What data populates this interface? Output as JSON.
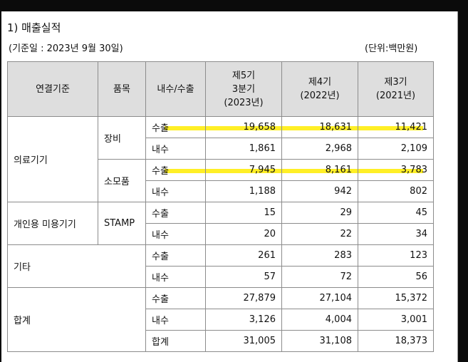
{
  "title": "1) 매출실적",
  "basis": "(기준일 : 2023년 9월 30일)",
  "unit": "(단위:백만원)",
  "headers": {
    "category": "연결기준",
    "item": "품목",
    "flow": "내수/수출",
    "p5": [
      "제5기",
      "3분기",
      "(2023년)"
    ],
    "p4": [
      "제4기",
      "(2022년)"
    ],
    "p3": [
      "제3기",
      "(2021년)"
    ]
  },
  "rows": {
    "medical": "의료기기",
    "equipment": "장비",
    "consumables": "소모품",
    "personal": "개인용 미용기기",
    "stamp": "STAMP",
    "other": "기타",
    "total": "합계",
    "export": "수출",
    "domestic": "내수",
    "sum": "합계"
  },
  "values": {
    "equipment_export": [
      "19,658",
      "18,631",
      "11,421"
    ],
    "equipment_domestic": [
      "1,861",
      "2,968",
      "2,109"
    ],
    "consumables_export": [
      "7,945",
      "8,161",
      "3,783"
    ],
    "consumables_domestic": [
      "1,188",
      "942",
      "802"
    ],
    "stamp_export": [
      "15",
      "29",
      "45"
    ],
    "stamp_domestic": [
      "20",
      "22",
      "34"
    ],
    "other_export": [
      "261",
      "283",
      "123"
    ],
    "other_domestic": [
      "57",
      "72",
      "56"
    ],
    "total_export": [
      "27,879",
      "27,104",
      "15,372"
    ],
    "total_domestic": [
      "3,126",
      "4,004",
      "3,001"
    ],
    "total_sum": [
      "31,005",
      "31,108",
      "18,373"
    ]
  },
  "colors": {
    "highlight": "#ffec00",
    "header_bg": "#dedede",
    "border": "#8c8c8c"
  }
}
